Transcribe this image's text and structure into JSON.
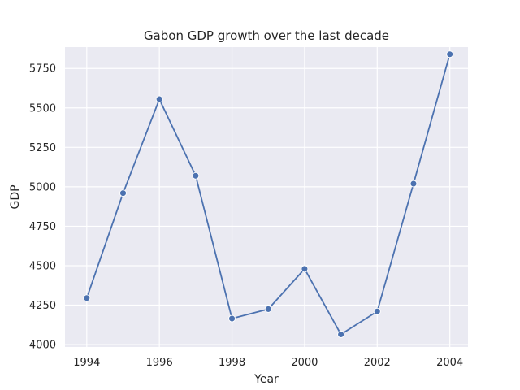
{
  "chart_data": {
    "type": "line",
    "title": "Gabon GDP growth over the last decade",
    "xlabel": "Year",
    "ylabel": "GDP",
    "xlim": [
      1993.4,
      2004.5
    ],
    "ylim": [
      3985,
      5885
    ],
    "grid": true,
    "x_ticks": [
      "1994",
      "1996",
      "1998",
      "2000",
      "2002",
      "2004"
    ],
    "y_ticks": [
      "4000",
      "4250",
      "4500",
      "4750",
      "5000",
      "5250",
      "5500",
      "5750"
    ],
    "x": [
      1994,
      1995,
      1996,
      1997,
      1998,
      1999,
      2000,
      2001,
      2002,
      2003,
      2004
    ],
    "series": [
      {
        "values": [
          4295,
          4960,
          5555,
          5070,
          4165,
          4225,
          4480,
          4065,
          4210,
          5020,
          5840
        ],
        "color": "#4c72b0"
      }
    ],
    "colors": {
      "background": "#eaeaf2",
      "grid": "#ffffff",
      "text": "#262626"
    }
  }
}
